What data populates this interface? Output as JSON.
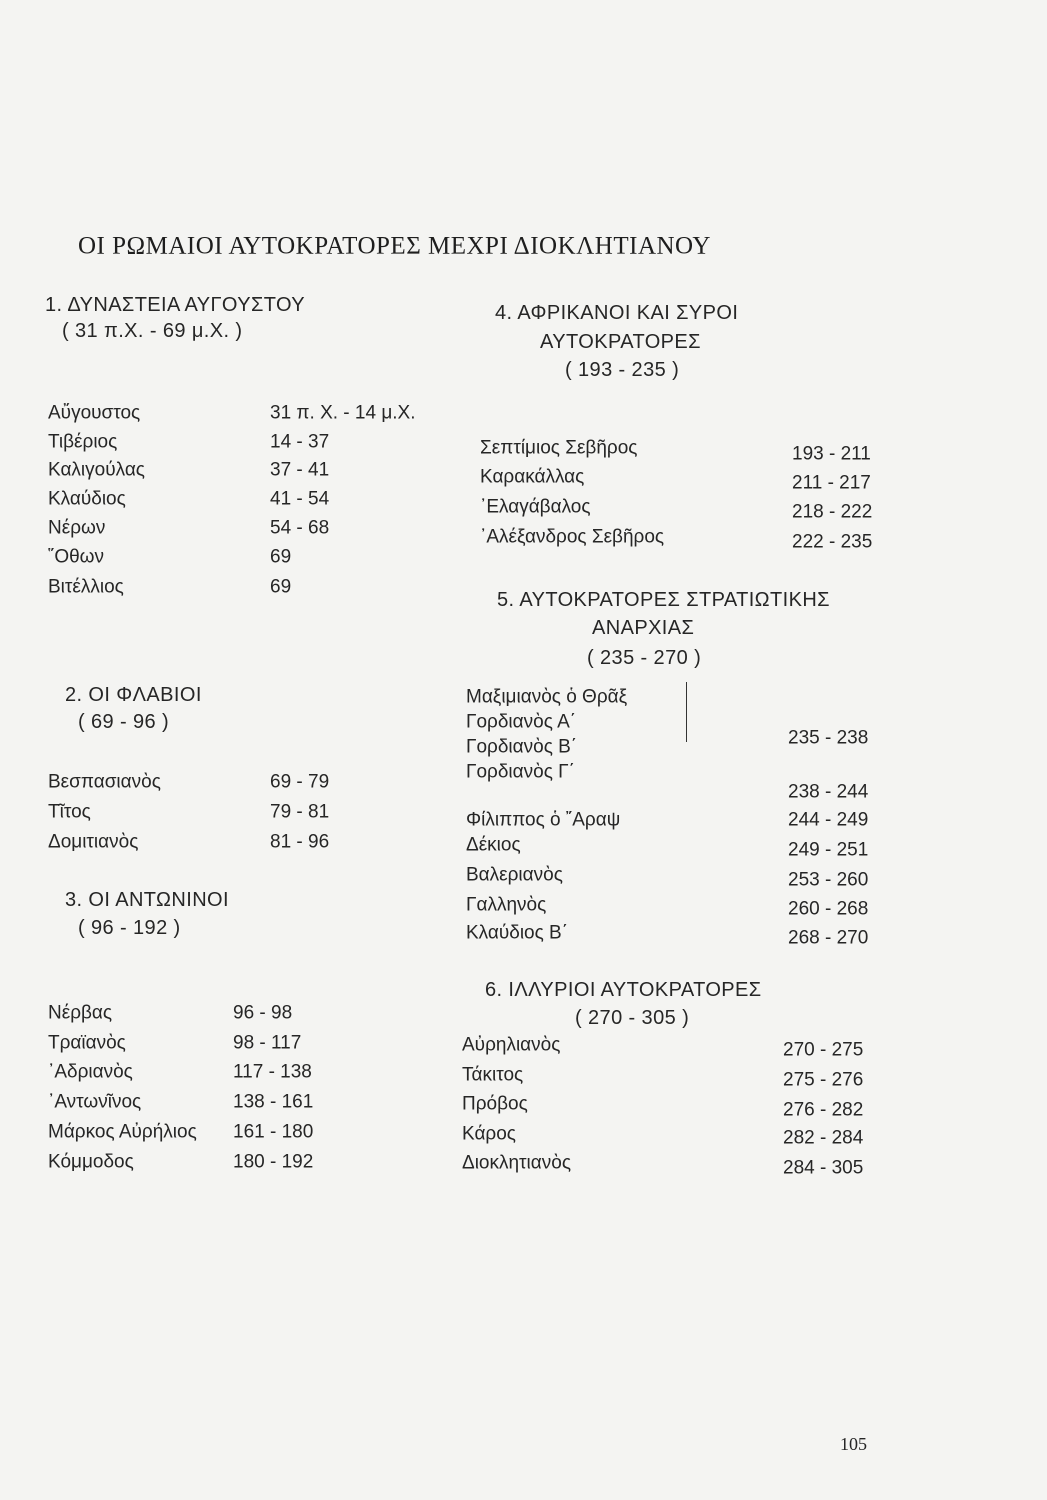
{
  "title": "ΟΙ ΡΩΜΑΙΟΙ ΑΥΤΟΚΡΑΤΟΡΕΣ ΜΕΧΡΙ ΔΙΟΚΛΗΤΙΑΝΟΥ",
  "page_number": "105",
  "sections": [
    {
      "heading": [
        "1. ΔΥΝΑΣΤΕΙΑ ΑΥΓΟΥΣΤΟΥ",
        "( 31 π.Χ. - 69 μ.Χ. )"
      ],
      "rows": [
        [
          "Αὔγουστος",
          "31 π. Χ. - 14 μ.Χ."
        ],
        [
          "Τιβέριος",
          "14 - 37"
        ],
        [
          "Καλιγούλας",
          "37 - 41"
        ],
        [
          "Κλαύδιος",
          "41 - 54"
        ],
        [
          "Νέρων",
          "54 - 68"
        ],
        [
          "῞Οθων",
          "69"
        ],
        [
          "Βιτέλλιος",
          "69"
        ]
      ]
    },
    {
      "heading": [
        "2. ΟΙ ΦΛΑΒΙΟΙ",
        "( 69 - 96 )"
      ],
      "rows": [
        [
          "Βεσπασιανὸς",
          "69 - 79"
        ],
        [
          "Τῖτος",
          "79 - 81"
        ],
        [
          "Δομιτιανὸς",
          "81 - 96"
        ]
      ]
    },
    {
      "heading": [
        "3. ΟΙ ΑΝΤΩΝΙΝΟΙ",
        "( 96 - 192 )"
      ],
      "rows": [
        [
          "Νέρβας",
          "96 -  98"
        ],
        [
          "Τραϊανὸς",
          "98 - 117"
        ],
        [
          "᾿Αδριανὸς",
          "117 - 138"
        ],
        [
          "᾿Αντωνῖνος",
          "138 - 161"
        ],
        [
          "Μάρκος Αὐρήλιος",
          "161 - 180"
        ],
        [
          "Κόμμοδος",
          "180 - 192"
        ]
      ]
    },
    {
      "heading": [
        "4. ΑΦΡΙΚΑΝΟΙ ΚΑΙ ΣΥΡΟΙ",
        "ΑΥΤΟΚΡΑΤΟΡΕΣ",
        "( 193 - 235 )"
      ],
      "rows": [
        [
          "Σεπτίμιος Σεβῆρος",
          "193 - 211"
        ],
        [
          "Καρακάλλας",
          "211 - 217"
        ],
        [
          "᾿Ελαγάβαλος",
          "218 - 222"
        ],
        [
          "᾿Αλέξανδρος Σεβῆρος",
          "222 - 235"
        ]
      ]
    },
    {
      "heading": [
        "5. ΑΥΤΟΚΡΑΤΟΡΕΣ ΣΤΡΑΤΙΩΤΙΚΗΣ",
        "ΑΝΑΡΧΙΑΣ",
        "( 235 - 270 )"
      ],
      "rows": [
        [
          "Μαξιμιανὸς ὁ Θρᾶξ",
          ""
        ],
        [
          "Γορδιανὸς  Α΄",
          "235 - 238"
        ],
        [
          "Γορδιανὸς  Β΄",
          ""
        ],
        [
          "Γορδιανὸς  Γ΄",
          "238 - 244"
        ],
        [
          "Φίλιππος  ὁ  ῎Αραψ",
          "244 - 249"
        ],
        [
          "Δέκιος",
          "249 - 251"
        ],
        [
          "Βαλεριανὸς",
          "253 - 260"
        ],
        [
          "Γαλληνὸς",
          "260 - 268"
        ],
        [
          "Κλαύδιος  Β΄",
          "268 - 270"
        ]
      ]
    },
    {
      "heading": [
        "6. ΙΛΛΥΡΙΟΙ  ΑΥΤΟΚΡΑΤΟΡΕΣ",
        "( 270 - 305 )"
      ],
      "rows": [
        [
          "Αὐρηλιανὸς",
          "270 - 275"
        ],
        [
          "Τάκιτος",
          "275 - 276"
        ],
        [
          "Πρόβος",
          "276 - 282"
        ],
        [
          "Κάρος",
          "282 - 284"
        ],
        [
          "Διοκλητιανὸς",
          "284 - 305"
        ]
      ]
    }
  ]
}
